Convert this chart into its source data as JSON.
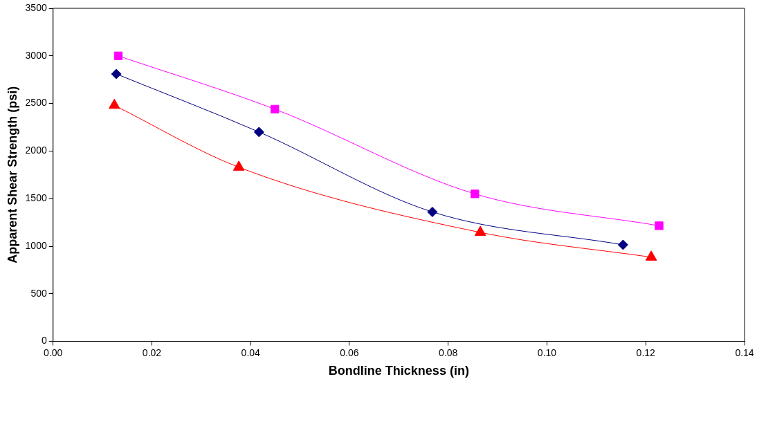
{
  "chart_data": {
    "type": "line",
    "xlabel": "Bondline Thickness (in)",
    "ylabel": "Apparent Shear Strength (psi)",
    "xlim": [
      0,
      0.14
    ],
    "xticks": [
      {
        "value": 0,
        "label": "0.00"
      },
      {
        "value": 0.02,
        "label": "0.02"
      },
      {
        "value": 0.04,
        "label": "0.04"
      },
      {
        "value": 0.06,
        "label": "0.06"
      },
      {
        "value": 0.08,
        "label": "0.08"
      },
      {
        "value": 0.1,
        "label": "0.10"
      },
      {
        "value": 0.12,
        "label": "0.12"
      },
      {
        "value": 0.14,
        "label": "0.14"
      }
    ],
    "ylim": [
      0,
      3500
    ],
    "yticks": [
      0,
      500,
      1000,
      1500,
      2000,
      2500,
      3000,
      3500
    ],
    "grid": false,
    "legend": false,
    "series": [
      {
        "color": "#ff00ff",
        "marker": "square",
        "x": [
          0.0132,
          0.0449,
          0.0854,
          0.1227
        ],
        "values": [
          3000,
          2440,
          1550,
          1215
        ]
      },
      {
        "color": "#000080",
        "marker": "diamond",
        "x": [
          0.0128,
          0.0417,
          0.0768,
          0.1154
        ],
        "values": [
          2810,
          2200,
          1360,
          1015
        ]
      },
      {
        "color": "#ff0000",
        "marker": "triangle",
        "x": [
          0.0124,
          0.0376,
          0.0865,
          0.1211
        ],
        "values": [
          2480,
          1830,
          1145,
          885
        ]
      }
    ]
  }
}
